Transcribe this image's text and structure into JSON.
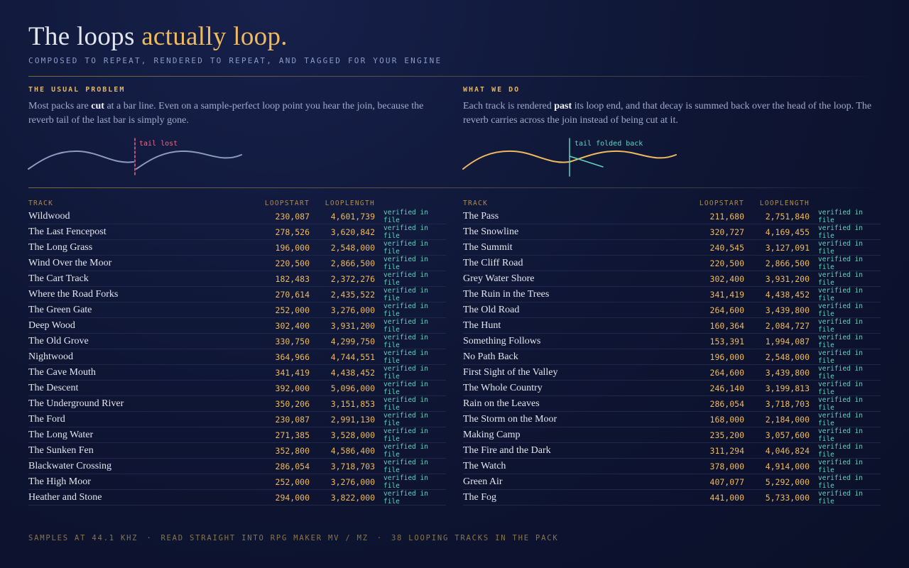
{
  "header": {
    "title_lead": "The loops ",
    "title_accent": "actually loop.",
    "subtitle": "COMPOSED TO REPEAT, RENDERED TO REPEAT, AND TAGGED FOR YOUR ENGINE"
  },
  "panels": [
    {
      "heading": "THE USUAL PROBLEM",
      "text_before": "Most packs are ",
      "text_bold": "cut",
      "text_after": " at a bar line. Even on a sample-perfect loop point you hear the join, because the reverb tail of the last bar is simply gone.",
      "diagram_label": "tail lost"
    },
    {
      "heading": "WHAT WE DO",
      "text_before": "Each track is rendered ",
      "text_bold": "past",
      "text_after": " its loop end, and that decay is summed back over the head of the loop. The reverb carries across the join instead of being cut at it.",
      "diagram_label": "tail folded back"
    }
  ],
  "tables": [
    {
      "columns": [
        "TRACK",
        "LOOPSTART",
        "LOOPLENGTH"
      ],
      "rows": [
        [
          "Wildwood",
          "230,087",
          "4,601,739",
          "verified in file"
        ],
        [
          "The Last Fencepost",
          "278,526",
          "3,620,842",
          "verified in file"
        ],
        [
          "The Long Grass",
          "196,000",
          "2,548,000",
          "verified in file"
        ],
        [
          "Wind Over the Moor",
          "220,500",
          "2,866,500",
          "verified in file"
        ],
        [
          "The Cart Track",
          "182,483",
          "2,372,276",
          "verified in file"
        ],
        [
          "Where the Road Forks",
          "270,614",
          "2,435,522",
          "verified in file"
        ],
        [
          "The Green Gate",
          "252,000",
          "3,276,000",
          "verified in file"
        ],
        [
          "Deep Wood",
          "302,400",
          "3,931,200",
          "verified in file"
        ],
        [
          "The Old Grove",
          "330,750",
          "4,299,750",
          "verified in file"
        ],
        [
          "Nightwood",
          "364,966",
          "4,744,551",
          "verified in file"
        ],
        [
          "The Cave Mouth",
          "341,419",
          "4,438,452",
          "verified in file"
        ],
        [
          "The Descent",
          "392,000",
          "5,096,000",
          "verified in file"
        ],
        [
          "The Underground River",
          "350,206",
          "3,151,853",
          "verified in file"
        ],
        [
          "The Ford",
          "230,087",
          "2,991,130",
          "verified in file"
        ],
        [
          "The Long Water",
          "271,385",
          "3,528,000",
          "verified in file"
        ],
        [
          "The Sunken Fen",
          "352,800",
          "4,586,400",
          "verified in file"
        ],
        [
          "Blackwater Crossing",
          "286,054",
          "3,718,703",
          "verified in file"
        ],
        [
          "The High Moor",
          "252,000",
          "3,276,000",
          "verified in file"
        ],
        [
          "Heather and Stone",
          "294,000",
          "3,822,000",
          "verified in file"
        ]
      ]
    },
    {
      "columns": [
        "TRACK",
        "LOOPSTART",
        "LOOPLENGTH"
      ],
      "rows": [
        [
          "The Pass",
          "211,680",
          "2,751,840",
          "verified in file"
        ],
        [
          "The Snowline",
          "320,727",
          "4,169,455",
          "verified in file"
        ],
        [
          "The Summit",
          "240,545",
          "3,127,091",
          "verified in file"
        ],
        [
          "The Cliff Road",
          "220,500",
          "2,866,500",
          "verified in file"
        ],
        [
          "Grey Water Shore",
          "302,400",
          "3,931,200",
          "verified in file"
        ],
        [
          "The Ruin in the Trees",
          "341,419",
          "4,438,452",
          "verified in file"
        ],
        [
          "The Old Road",
          "264,600",
          "3,439,800",
          "verified in file"
        ],
        [
          "The Hunt",
          "160,364",
          "2,084,727",
          "verified in file"
        ],
        [
          "Something Follows",
          "153,391",
          "1,994,087",
          "verified in file"
        ],
        [
          "No Path Back",
          "196,000",
          "2,548,000",
          "verified in file"
        ],
        [
          "First Sight of the Valley",
          "264,600",
          "3,439,800",
          "verified in file"
        ],
        [
          "The Whole Country",
          "246,140",
          "3,199,813",
          "verified in file"
        ],
        [
          "Rain on the Leaves",
          "286,054",
          "3,718,703",
          "verified in file"
        ],
        [
          "The Storm on the Moor",
          "168,000",
          "2,184,000",
          "verified in file"
        ],
        [
          "Making Camp",
          "235,200",
          "3,057,600",
          "verified in file"
        ],
        [
          "The Fire and the Dark",
          "311,294",
          "4,046,824",
          "verified in file"
        ],
        [
          "The Watch",
          "378,000",
          "4,914,000",
          "verified in file"
        ],
        [
          "Green Air",
          "407,077",
          "5,292,000",
          "verified in file"
        ],
        [
          "The Fog",
          "441,000",
          "5,733,000",
          "verified in file"
        ]
      ]
    }
  ],
  "footer": {
    "items": [
      "SAMPLES AT 44.1 KHZ",
      "READ STRAIGHT INTO RPG MAKER MV / MZ",
      "38 LOOPING TRACKS IN THE PACK"
    ],
    "separator": "·"
  }
}
